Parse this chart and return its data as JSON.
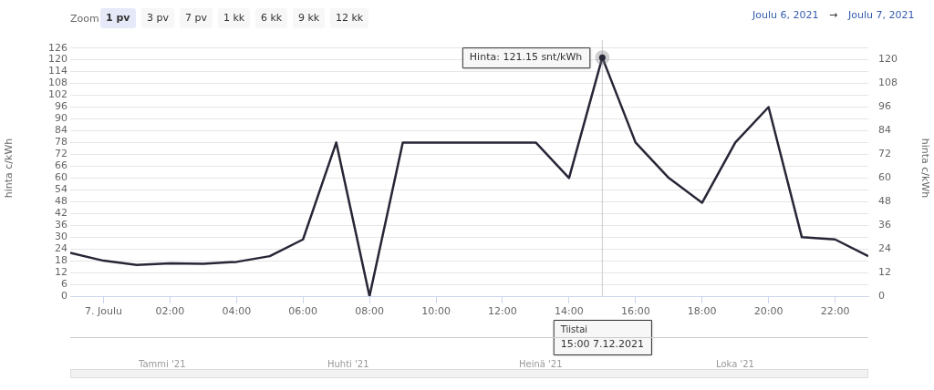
{
  "chart_data": {
    "type": "line",
    "ylabel": "hinta c/kWh",
    "y2label": "hinta c/kWh",
    "x": [
      "2021-12-06T23:00",
      "2021-12-07T00:00",
      "2021-12-07T01:00",
      "2021-12-07T02:00",
      "2021-12-07T03:00",
      "2021-12-07T04:00",
      "2021-12-07T05:00",
      "2021-12-07T06:00",
      "2021-12-07T07:00",
      "2021-12-07T08:00",
      "2021-12-07T09:00",
      "2021-12-07T10:00",
      "2021-12-07T11:00",
      "2021-12-07T12:00",
      "2021-12-07T13:00",
      "2021-12-07T14:00",
      "2021-12-07T15:00",
      "2021-12-07T16:00",
      "2021-12-07T17:00",
      "2021-12-07T18:00",
      "2021-12-07T19:00",
      "2021-12-07T20:00",
      "2021-12-07T21:00",
      "2021-12-07T22:00",
      "2021-12-07T23:00"
    ],
    "series": [
      {
        "color": "#262637",
        "values": [
          22,
          18,
          15.8,
          16.6,
          16.4,
          17.4,
          20.3,
          28.8,
          78,
          0,
          78,
          78,
          78,
          78,
          78,
          60,
          121.15,
          78,
          60,
          47.4,
          78,
          96,
          29.9,
          28.8,
          20.3
        ]
      }
    ],
    "xlim": [
      "2021-12-06T23:00",
      "2021-12-07T23:00"
    ],
    "xticks": [
      {
        "value": "2021-12-07T00:00",
        "label": "7. Joulu"
      },
      {
        "value": "2021-12-07T02:00",
        "label": "02:00"
      },
      {
        "value": "2021-12-07T04:00",
        "label": "04:00"
      },
      {
        "value": "2021-12-07T06:00",
        "label": "06:00"
      },
      {
        "value": "2021-12-07T08:00",
        "label": "08:00"
      },
      {
        "value": "2021-12-07T10:00",
        "label": "10:00"
      },
      {
        "value": "2021-12-07T12:00",
        "label": "12:00"
      },
      {
        "value": "2021-12-07T14:00",
        "label": "14:00"
      },
      {
        "value": "2021-12-07T16:00",
        "label": "16:00"
      },
      {
        "value": "2021-12-07T18:00",
        "label": "18:00"
      },
      {
        "value": "2021-12-07T20:00",
        "label": "20:00"
      },
      {
        "value": "2021-12-07T22:00",
        "label": "22:00"
      }
    ],
    "ylim": [
      0,
      130
    ],
    "yticks": [
      0,
      6,
      12,
      18,
      24,
      30,
      36,
      42,
      48,
      54,
      60,
      66,
      72,
      78,
      84,
      90,
      96,
      102,
      108,
      114,
      120,
      126
    ],
    "y2lim": [
      0,
      130
    ],
    "y2ticks": [
      0,
      12,
      24,
      36,
      48,
      60,
      72,
      84,
      96,
      108,
      120
    ],
    "grid": "y",
    "legend": false,
    "marker": "none",
    "line_style": "solid",
    "ref_lines": [
      {
        "axis": "x",
        "value": "2021-12-07T15:00",
        "color": "#cccccc"
      }
    ],
    "annotations": [
      "Zoom",
      "1 pv",
      "3 pv",
      "7 pv",
      "1 kk",
      "6 kk",
      "9 kk",
      "12 kk",
      "Joulu 6, 2021",
      "→",
      "Joulu 7, 2021",
      "Tammi '21",
      "Huhti '21",
      "Heinä '21",
      "Loka '21",
      "Tiistai\n15:00 7.12.2021",
      {
        "text": "Hinta: 121.15 snt/kWh",
        "x": "2021-12-07T15:00",
        "y": 121.15
      }
    ]
  }
}
